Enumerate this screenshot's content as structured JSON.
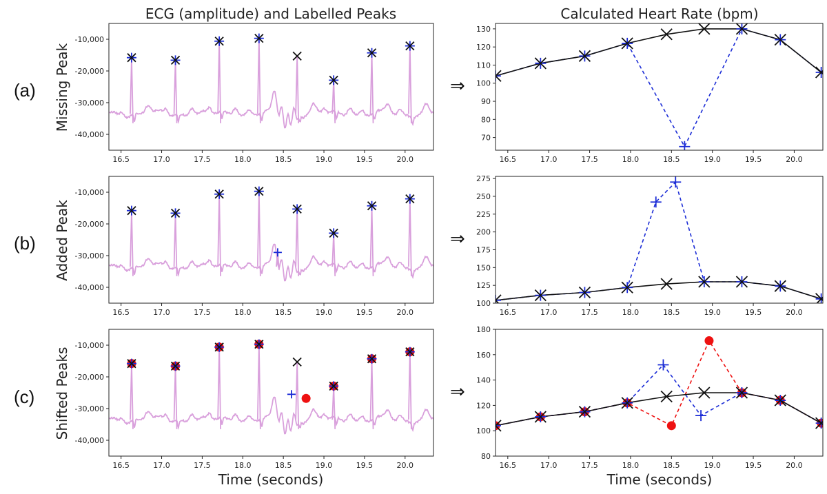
{
  "figure": {
    "left_title": "ECG (amplitude) and Labelled Peaks",
    "right_title": "Calculated Heart Rate (bpm)",
    "xlabel": "Time (seconds)",
    "arrow": "⇒",
    "rows": [
      {
        "tag": "(a)",
        "ylabel": "Missing Peak"
      },
      {
        "tag": "(b)",
        "ylabel": "Added Peak"
      },
      {
        "tag": "(c)",
        "ylabel": "Shifted Peaks"
      }
    ],
    "colors": {
      "ecg": "#d9a0dc",
      "true": "#111111",
      "labelled": "#1a2bd6",
      "shifted": "#ee1111"
    }
  },
  "chart_data": [
    {
      "id": "ecg-a",
      "type": "line",
      "row": 0,
      "side": "left",
      "xlim": [
        16.35,
        20.35
      ],
      "ylim": [
        -45000,
        -5000
      ],
      "xticks": [
        16.5,
        17.0,
        17.5,
        18.0,
        18.5,
        19.0,
        19.5,
        20.0
      ],
      "yticks": [
        -10000,
        -20000,
        -30000,
        -40000
      ],
      "yticklabels": [
        "-10,000",
        "-20,000",
        "-30,000",
        "-40,000"
      ],
      "true_peaks": {
        "x": [
          16.63,
          17.17,
          17.71,
          18.2,
          18.67,
          19.12,
          19.59,
          20.06
        ],
        "y": [
          -15800,
          -16600,
          -10600,
          -9700,
          -15300,
          -22900,
          -14300,
          -12100
        ]
      },
      "labelled_peaks": {
        "x": [
          16.63,
          17.17,
          17.71,
          18.2,
          19.12,
          19.59,
          20.06
        ],
        "y": [
          -15800,
          -16600,
          -10600,
          -9700,
          -22900,
          -14300,
          -12100
        ]
      }
    },
    {
      "id": "hr-a",
      "type": "line",
      "row": 0,
      "side": "right",
      "xlim": [
        16.35,
        20.35
      ],
      "ylim": [
        63,
        133
      ],
      "xticks": [
        16.5,
        17.0,
        17.5,
        18.0,
        18.5,
        19.0,
        19.5,
        20.0
      ],
      "yticks": [
        70,
        80,
        90,
        100,
        110,
        120,
        130
      ],
      "true_hr": {
        "x": [
          16.35,
          16.9,
          17.44,
          17.96,
          18.44,
          18.9,
          19.36,
          19.83,
          20.33
        ],
        "y": [
          104,
          111,
          115,
          122,
          127,
          130,
          130,
          124,
          106
        ]
      },
      "labelled_hr": {
        "x": [
          16.35,
          16.9,
          17.44,
          17.96,
          18.66,
          19.36,
          19.83,
          20.33
        ],
        "y": [
          104,
          111,
          115,
          122,
          65,
          130,
          124,
          106
        ]
      }
    },
    {
      "id": "ecg-b",
      "type": "line",
      "row": 1,
      "side": "left",
      "xlim": [
        16.35,
        20.35
      ],
      "ylim": [
        -45000,
        -5000
      ],
      "xticks": [
        16.5,
        17.0,
        17.5,
        18.0,
        18.5,
        19.0,
        19.5,
        20.0
      ],
      "yticks": [
        -10000,
        -20000,
        -30000,
        -40000
      ],
      "yticklabels": [
        "-10,000",
        "-20,000",
        "-30,000",
        "-40,000"
      ],
      "true_peaks": {
        "x": [
          16.63,
          17.17,
          17.71,
          18.2,
          18.67,
          19.12,
          19.59,
          20.06
        ],
        "y": [
          -15800,
          -16600,
          -10600,
          -9700,
          -15300,
          -22900,
          -14300,
          -12100
        ]
      },
      "labelled_peaks": {
        "x": [
          16.63,
          17.17,
          17.71,
          18.2,
          18.43,
          18.67,
          19.12,
          19.59,
          20.06
        ],
        "y": [
          -15800,
          -16600,
          -10600,
          -9700,
          -29000,
          -15300,
          -22900,
          -14300,
          -12100
        ]
      }
    },
    {
      "id": "hr-b",
      "type": "line",
      "row": 1,
      "side": "right",
      "xlim": [
        16.35,
        20.35
      ],
      "ylim": [
        100,
        278
      ],
      "xticks": [
        16.5,
        17.0,
        17.5,
        18.0,
        18.5,
        19.0,
        19.5,
        20.0
      ],
      "yticks": [
        100,
        125,
        150,
        175,
        200,
        225,
        250,
        275
      ],
      "true_hr": {
        "x": [
          16.35,
          16.9,
          17.44,
          17.96,
          18.44,
          18.9,
          19.36,
          19.83,
          20.33
        ],
        "y": [
          104,
          111,
          115,
          122,
          127,
          130,
          130,
          124,
          106
        ]
      },
      "labelled_hr": {
        "x": [
          16.35,
          16.9,
          17.44,
          17.96,
          18.31,
          18.55,
          18.9,
          19.36,
          19.83,
          20.33
        ],
        "y": [
          104,
          111,
          115,
          122,
          242,
          270,
          130,
          130,
          124,
          106
        ]
      }
    },
    {
      "id": "ecg-c",
      "type": "line",
      "row": 2,
      "side": "left",
      "xlim": [
        16.35,
        20.35
      ],
      "ylim": [
        -45000,
        -5000
      ],
      "xticks": [
        16.5,
        17.0,
        17.5,
        18.0,
        18.5,
        19.0,
        19.5,
        20.0
      ],
      "yticks": [
        -10000,
        -20000,
        -30000,
        -40000
      ],
      "yticklabels": [
        "-10,000",
        "-20,000",
        "-30,000",
        "-40,000"
      ],
      "true_peaks": {
        "x": [
          16.63,
          17.17,
          17.71,
          18.2,
          18.67,
          19.12,
          19.59,
          20.06
        ],
        "y": [
          -15800,
          -16600,
          -10600,
          -9700,
          -15300,
          -22900,
          -14300,
          -12100
        ]
      },
      "labelled_peaks": {
        "x": [
          16.63,
          17.17,
          17.71,
          18.2,
          18.6,
          19.12,
          19.59,
          20.06
        ],
        "y": [
          -15800,
          -16600,
          -10600,
          -9700,
          -25500,
          -22900,
          -14300,
          -12100
        ]
      },
      "shifted_peaks": {
        "x": [
          16.63,
          17.17,
          17.71,
          18.2,
          18.78,
          19.12,
          19.59,
          20.06
        ],
        "y": [
          -15800,
          -16600,
          -10600,
          -9700,
          -26800,
          -22900,
          -14300,
          -12100
        ]
      }
    },
    {
      "id": "hr-c",
      "type": "line",
      "row": 2,
      "side": "right",
      "xlim": [
        16.35,
        20.35
      ],
      "ylim": [
        80,
        180
      ],
      "xticks": [
        16.5,
        17.0,
        17.5,
        18.0,
        18.5,
        19.0,
        19.5,
        20.0
      ],
      "yticks": [
        80,
        100,
        120,
        140,
        160,
        180
      ],
      "true_hr": {
        "x": [
          16.35,
          16.9,
          17.44,
          17.96,
          18.44,
          18.9,
          19.36,
          19.83,
          20.33
        ],
        "y": [
          104,
          111,
          115,
          122,
          127,
          130,
          130,
          124,
          106
        ]
      },
      "labelled_hr": {
        "x": [
          16.35,
          16.9,
          17.44,
          17.96,
          18.4,
          18.86,
          19.36,
          19.83,
          20.33
        ],
        "y": [
          104,
          111,
          115,
          122,
          152,
          112,
          130,
          124,
          106
        ]
      },
      "shifted_hr": {
        "x": [
          16.35,
          16.9,
          17.44,
          17.96,
          18.5,
          18.96,
          19.36,
          19.83,
          20.33
        ],
        "y": [
          104,
          111,
          115,
          122,
          104,
          171,
          130,
          124,
          106
        ]
      }
    }
  ]
}
